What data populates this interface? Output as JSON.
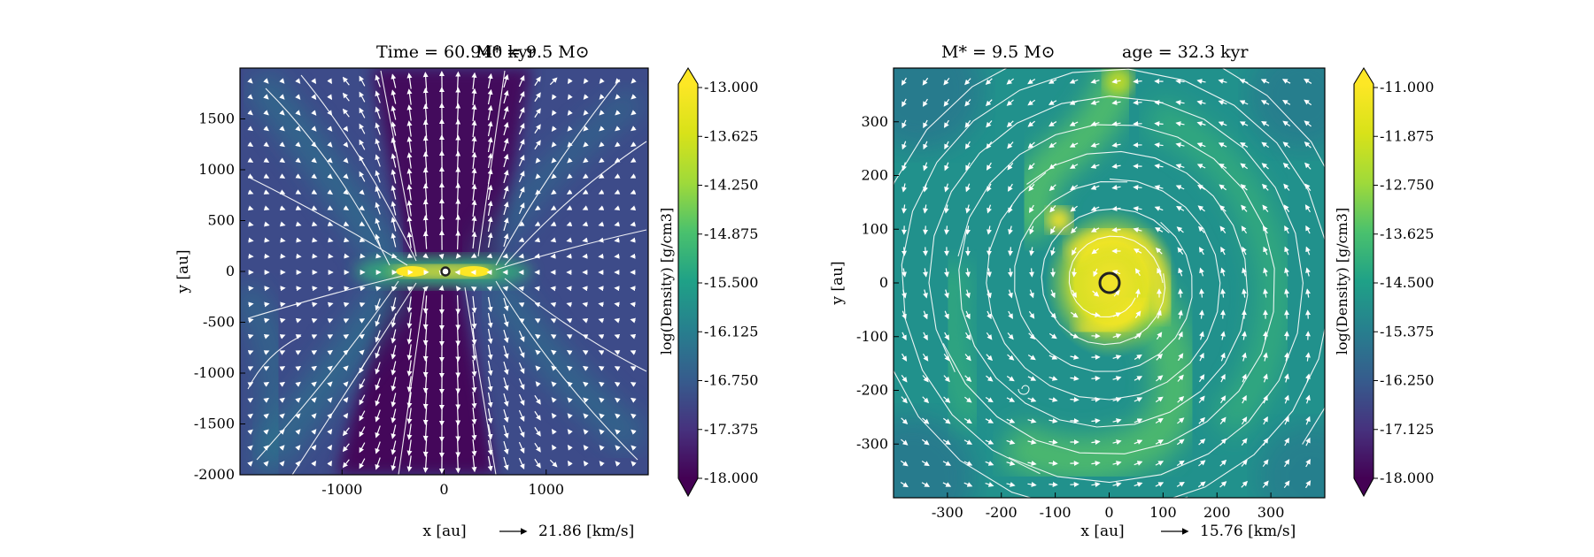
{
  "chart_data": [
    {
      "type": "heatmap",
      "title_left": "Time = 60.940 kyr",
      "title_right": "M* = 9.5 M⊙",
      "xlabel": "x [au]",
      "ylabel": "y [au]",
      "xlim": [
        -2000,
        2000
      ],
      "ylim": [
        -2000,
        2000
      ],
      "x_ticks": [
        -1000,
        0,
        1000
      ],
      "y_ticks": [
        -2000,
        -1500,
        -1000,
        -500,
        0,
        500,
        1000,
        1500
      ],
      "velocity_reference": "21.86 [km/s]",
      "colorbar": {
        "label": "log(Density) [g/cm3]",
        "range": [
          -18.0,
          -13.0
        ],
        "ticks": [
          "-13.000",
          "-13.625",
          "-14.250",
          "-14.875",
          "-15.500",
          "-16.125",
          "-16.750",
          "-17.375",
          "-18.000"
        ]
      },
      "description_elements": [
        "edge-on disk along y=0",
        "bipolar outflow cavity",
        "streamlines",
        "velocity arrows"
      ]
    },
    {
      "type": "heatmap",
      "title_left": "M* = 9.5 M⊙",
      "title_right": "age = 32.3 kyr",
      "xlabel": "x [au]",
      "ylabel": "y [au]",
      "xlim": [
        -400,
        400
      ],
      "ylim": [
        -400,
        400
      ],
      "x_ticks": [
        -300,
        -200,
        -100,
        0,
        100,
        200,
        300
      ],
      "y_ticks": [
        -300,
        -200,
        -100,
        0,
        100,
        200,
        300
      ],
      "velocity_reference": "15.76 [km/s]",
      "colorbar": {
        "label": "log(Density) [g/cm3]",
        "range": [
          -18.0,
          -11.0
        ],
        "ticks": [
          "-11.000",
          "-11.875",
          "-12.750",
          "-13.625",
          "-14.500",
          "-15.375",
          "-16.250",
          "-17.125",
          "-18.000"
        ]
      }
    }
  ],
  "colors": {
    "viridis_low": "#440154",
    "viridis_mid": "#21918c",
    "viridis_high": "#fde725"
  }
}
